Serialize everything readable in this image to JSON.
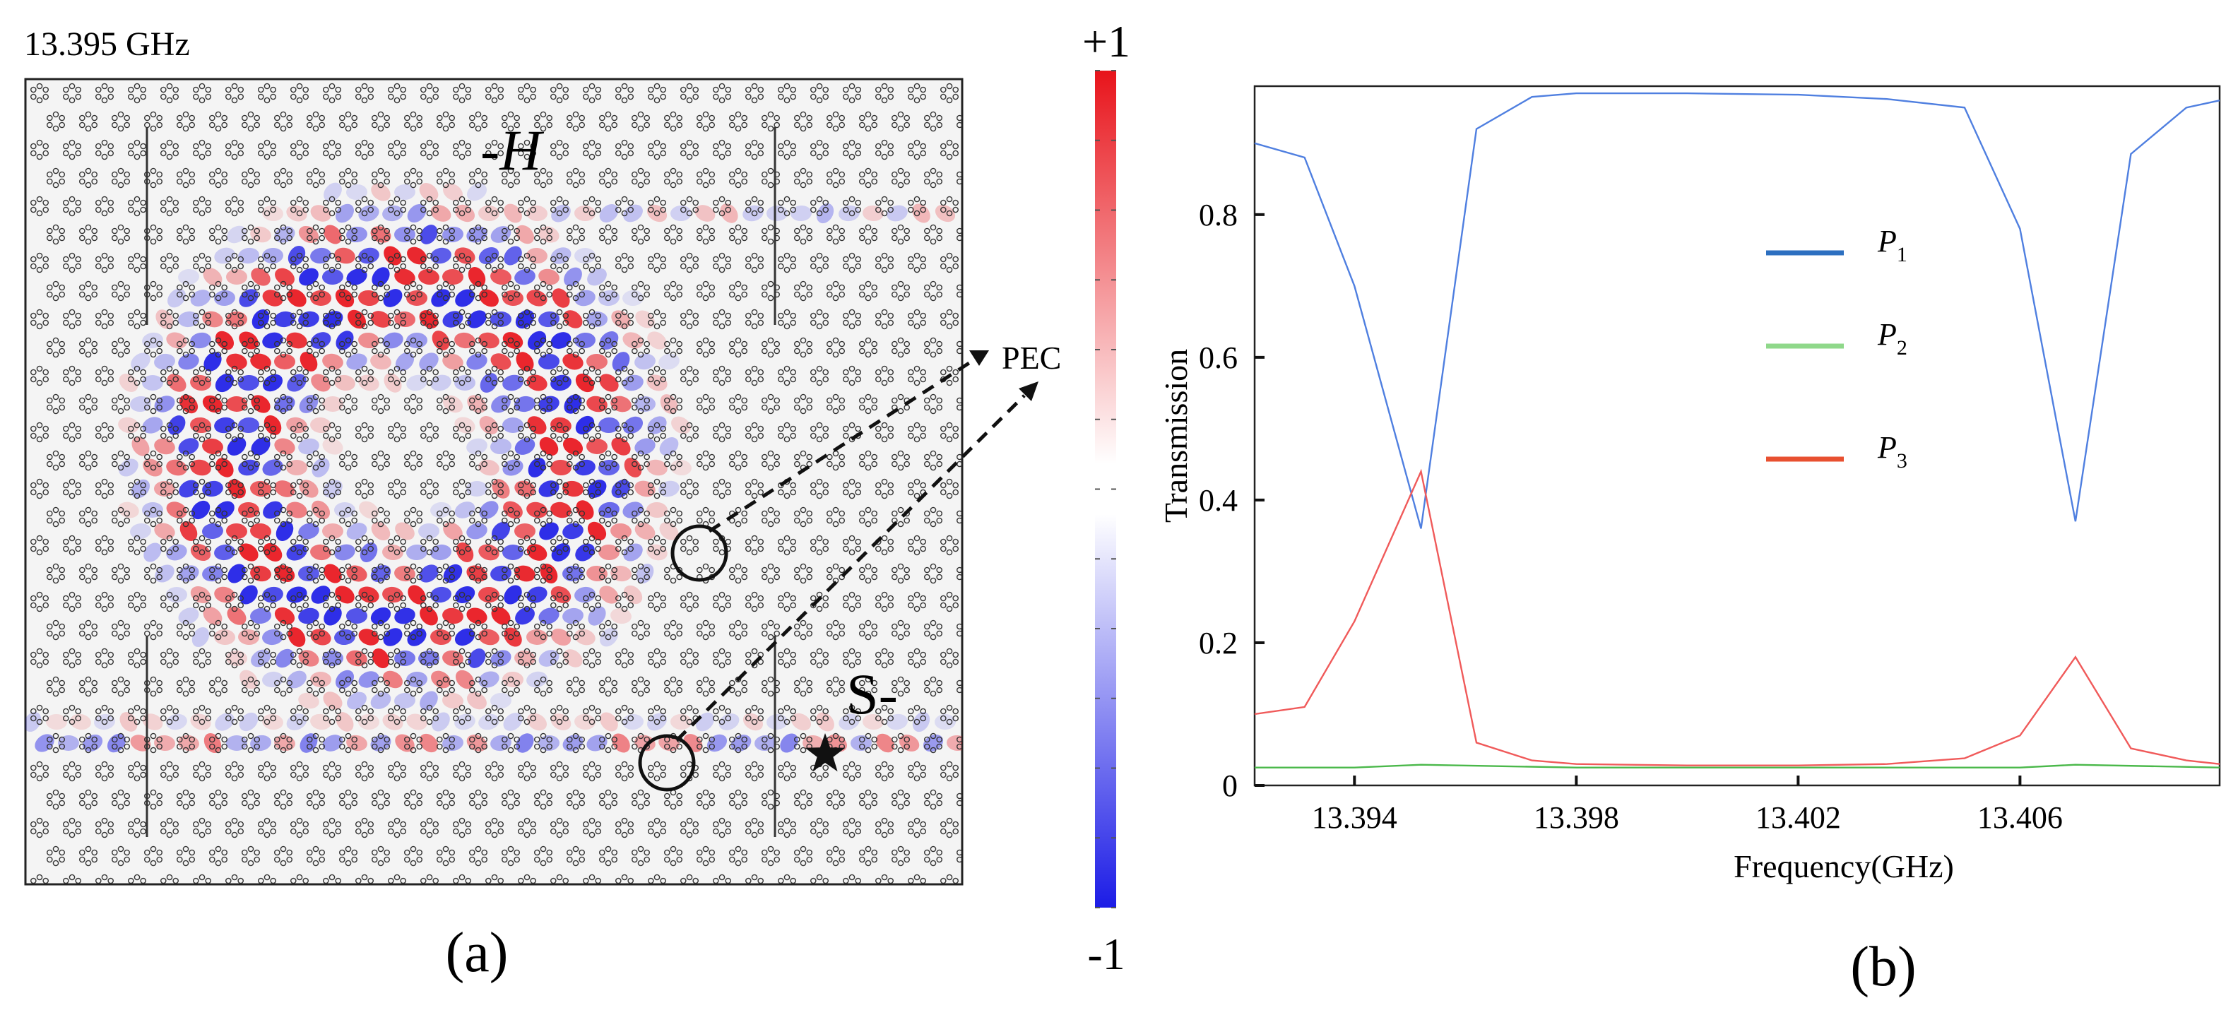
{
  "panel_a": {
    "frequency_label": "13.395 GHz",
    "label_H": "-H",
    "label_S": "S-",
    "pec_label": "PEC",
    "colorbar": {
      "max_label": "+1",
      "min_label": "-1",
      "max": 1,
      "min": -1
    },
    "caption": "(a)",
    "colors": {
      "positive": "#e8141b",
      "negative": "#1c1ce6",
      "hole": "#333333",
      "ring": "#111111"
    }
  },
  "panel_b": {
    "caption": "(b)",
    "chart_data": {
      "type": "line",
      "title": "",
      "xlabel": "Frequency(GHz)",
      "ylabel": "Transmission",
      "xlim": [
        13.3922,
        13.4096
      ],
      "ylim": [
        0,
        0.98
      ],
      "xticks": [
        13.394,
        13.398,
        13.402,
        13.406
      ],
      "xtick_labels": [
        "13.394",
        "13.398",
        "13.402",
        "13.406"
      ],
      "yticks": [
        0,
        0.2,
        0.4,
        0.6,
        0.8
      ],
      "ytick_labels": [
        "0",
        "0.2",
        "0.4",
        "0.6",
        "0.8"
      ],
      "legend_position": "upper-center",
      "series": [
        {
          "name": "P1",
          "sym": "P",
          "sub": "1",
          "color": "#4f7fe0",
          "legend_color": "#2c6fc0",
          "x": [
            13.3922,
            13.3931,
            13.394,
            13.3952,
            13.3962,
            13.3972,
            13.398,
            13.4,
            13.402,
            13.4036,
            13.405,
            13.406,
            13.407,
            13.408,
            13.409,
            13.4096
          ],
          "y": [
            0.9,
            0.88,
            0.7,
            0.36,
            0.92,
            0.965,
            0.97,
            0.97,
            0.968,
            0.962,
            0.95,
            0.78,
            0.37,
            0.885,
            0.95,
            0.96
          ]
        },
        {
          "name": "P2",
          "sym": "P",
          "sub": "2",
          "color": "#4ab84a",
          "legend_color": "#8fd88a",
          "x": [
            13.3922,
            13.394,
            13.3952,
            13.398,
            13.402,
            13.406,
            13.407,
            13.4096
          ],
          "y": [
            0.025,
            0.025,
            0.029,
            0.025,
            0.025,
            0.025,
            0.029,
            0.025
          ]
        },
        {
          "name": "P3",
          "sym": "P",
          "sub": "3",
          "color": "#f05a5a",
          "legend_color": "#e85030",
          "x": [
            13.3922,
            13.3931,
            13.394,
            13.3952,
            13.3962,
            13.3972,
            13.398,
            13.4,
            13.402,
            13.4036,
            13.405,
            13.406,
            13.407,
            13.408,
            13.409,
            13.4096
          ],
          "y": [
            0.1,
            0.11,
            0.23,
            0.44,
            0.06,
            0.035,
            0.03,
            0.028,
            0.028,
            0.03,
            0.038,
            0.07,
            0.18,
            0.052,
            0.035,
            0.03
          ]
        }
      ]
    }
  }
}
